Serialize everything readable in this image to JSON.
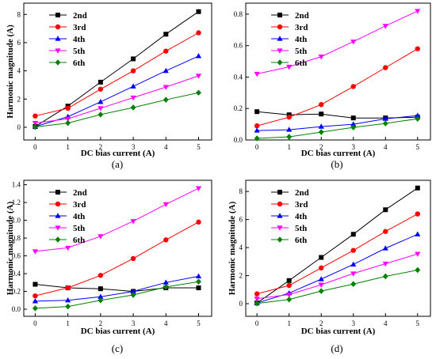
{
  "chart_data": [
    {
      "type": "line",
      "label": "(a)",
      "xlabel": "DC bias current (A)",
      "ylabel": "Harmonic magnitude (A)",
      "x": [
        0,
        1,
        2,
        3,
        4,
        5
      ],
      "xticks": [
        "0",
        "1",
        "2",
        "3",
        "4",
        "5"
      ],
      "xlim": [
        -0.35,
        5.4
      ],
      "ylim": [
        -0.9,
        8.8
      ],
      "yticks": [
        "0",
        "2",
        "4",
        "6",
        "8"
      ],
      "legend_position": "top-left",
      "series": [
        {
          "name": "2nd",
          "values": [
            0.05,
            1.5,
            3.2,
            4.85,
            6.6,
            8.2
          ]
        },
        {
          "name": "3rd",
          "values": [
            0.8,
            1.35,
            2.7,
            4.0,
            5.4,
            6.7
          ]
        },
        {
          "name": "4th",
          "values": [
            0.05,
            0.75,
            1.8,
            2.9,
            4.0,
            5.05
          ]
        },
        {
          "name": "5th",
          "values": [
            0.3,
            0.6,
            1.35,
            2.1,
            2.85,
            3.65
          ]
        },
        {
          "name": "6th",
          "values": [
            0.02,
            0.3,
            0.9,
            1.4,
            1.95,
            2.45
          ]
        }
      ]
    },
    {
      "type": "line",
      "label": "(b)",
      "xlabel": "DC bias current (A)",
      "ylabel": "",
      "x": [
        0,
        1,
        2,
        3,
        4,
        5
      ],
      "xticks": [
        "0",
        "1",
        "2",
        "3",
        "4",
        "5"
      ],
      "xlim": [
        -0.35,
        5.4
      ],
      "ylim": [
        0.0,
        0.87
      ],
      "yticks": [
        "0.0",
        "0.2",
        "0.4",
        "0.6",
        "0.8"
      ],
      "legend_position": "top-left",
      "series": [
        {
          "name": "2nd",
          "values": [
            0.18,
            0.16,
            0.165,
            0.14,
            0.14,
            0.145
          ]
        },
        {
          "name": "3rd",
          "values": [
            0.09,
            0.145,
            0.225,
            0.34,
            0.46,
            0.58
          ]
        },
        {
          "name": "4th",
          "values": [
            0.06,
            0.065,
            0.085,
            0.1,
            0.135,
            0.155
          ]
        },
        {
          "name": "5th",
          "values": [
            0.42,
            0.465,
            0.53,
            0.625,
            0.725,
            0.82
          ]
        },
        {
          "name": "6th",
          "values": [
            0.01,
            0.02,
            0.05,
            0.08,
            0.105,
            0.135
          ]
        }
      ]
    },
    {
      "type": "line",
      "label": "(c)",
      "xlabel": "DC bias current (A)",
      "ylabel": "Harmonic magnitude (A)",
      "x": [
        0,
        1,
        2,
        3,
        4,
        5
      ],
      "xticks": [
        "0",
        "1",
        "2",
        "3",
        "4",
        "5"
      ],
      "xlim": [
        -0.35,
        5.4
      ],
      "ylim": [
        -0.08,
        1.45
      ],
      "yticks": [
        "0.0",
        "0.2",
        "0.4",
        "0.6",
        "0.8",
        "1.0",
        "1.2",
        "1.4"
      ],
      "legend_position": "top-left",
      "series": [
        {
          "name": "2nd",
          "values": [
            0.28,
            0.24,
            0.23,
            0.2,
            0.24,
            0.24
          ]
        },
        {
          "name": "3rd",
          "values": [
            0.15,
            0.24,
            0.38,
            0.57,
            0.78,
            0.98
          ]
        },
        {
          "name": "4th",
          "values": [
            0.09,
            0.1,
            0.14,
            0.2,
            0.3,
            0.37
          ]
        },
        {
          "name": "5th",
          "values": [
            0.65,
            0.69,
            0.82,
            0.99,
            1.18,
            1.36
          ]
        },
        {
          "name": "6th",
          "values": [
            0.01,
            0.03,
            0.1,
            0.16,
            0.25,
            0.31
          ]
        }
      ]
    },
    {
      "type": "line",
      "label": "(d)",
      "xlabel": "DC bias current (A)",
      "ylabel": "Harmonic magnitude (A)",
      "x": [
        0,
        1,
        2,
        3,
        4,
        5
      ],
      "xticks": [
        "0",
        "1",
        "2",
        "3",
        "4",
        "5"
      ],
      "xlim": [
        -0.35,
        5.4
      ],
      "ylim": [
        -0.9,
        8.8
      ],
      "yticks": [
        "0",
        "2",
        "4",
        "6",
        "8"
      ],
      "legend_position": "top-left",
      "series": [
        {
          "name": "2nd",
          "values": [
            0.05,
            1.65,
            3.3,
            4.95,
            6.7,
            8.25
          ]
        },
        {
          "name": "3rd",
          "values": [
            0.7,
            1.3,
            2.55,
            3.8,
            5.15,
            6.4
          ]
        },
        {
          "name": "4th",
          "values": [
            0.05,
            0.75,
            1.75,
            2.8,
            3.95,
            4.95
          ]
        },
        {
          "name": "5th",
          "values": [
            0.35,
            0.65,
            1.35,
            2.15,
            2.85,
            3.55
          ]
        },
        {
          "name": "6th",
          "values": [
            0.02,
            0.3,
            0.9,
            1.4,
            1.95,
            2.4
          ]
        }
      ]
    }
  ],
  "series_style": [
    {
      "color": "#000000",
      "marker": "square"
    },
    {
      "color": "#ff0000",
      "marker": "circle"
    },
    {
      "color": "#0000ff",
      "marker": "triangle-up"
    },
    {
      "color": "#ff00ff",
      "marker": "triangle-down"
    },
    {
      "color": "#008000",
      "marker": "diamond"
    }
  ]
}
